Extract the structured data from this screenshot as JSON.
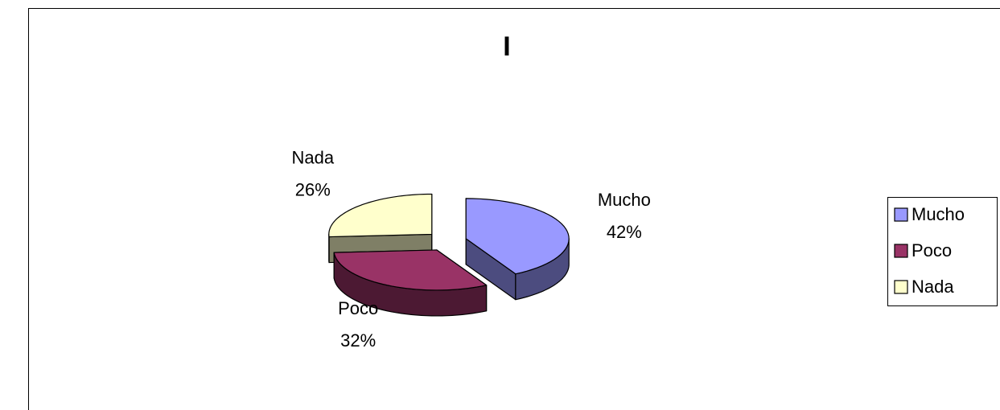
{
  "chart_data": {
    "type": "pie",
    "title": "I",
    "categories": [
      "Mucho",
      "Poco",
      "Nada"
    ],
    "values": [
      42,
      32,
      26
    ],
    "value_labels": [
      "42%",
      "32%",
      "26%"
    ],
    "colors": [
      "#9999ff",
      "#993366",
      "#ffffcc"
    ],
    "legend": "right"
  }
}
